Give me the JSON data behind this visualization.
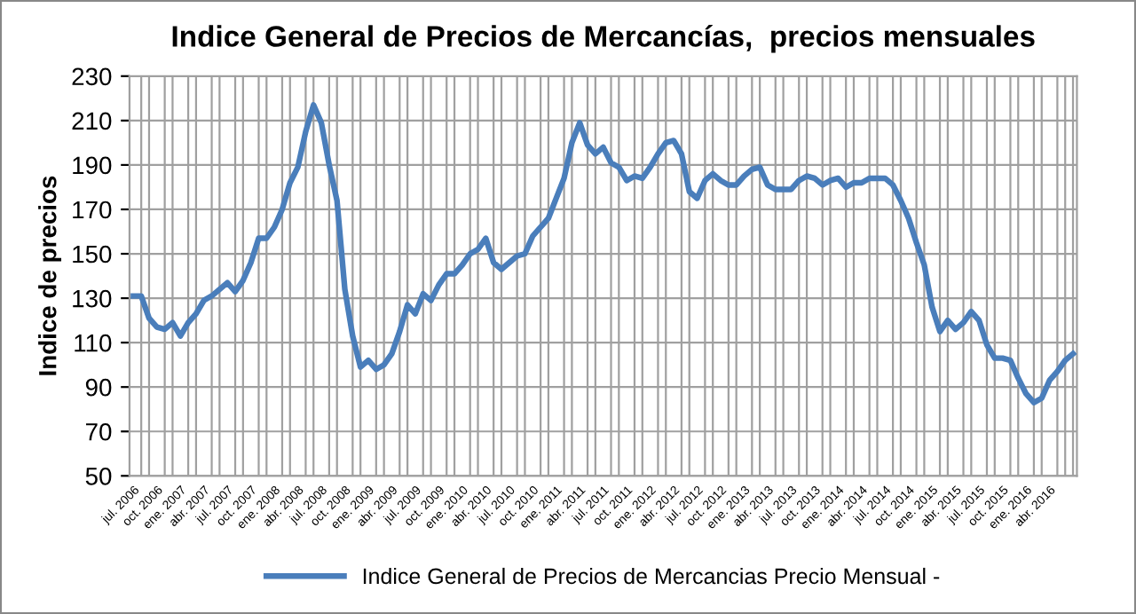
{
  "chart_data": {
    "type": "line",
    "title": "Indice General de Precios de Mercancías,  precios mensuales",
    "ylabel": "Indice de precios",
    "categories": [
      "jul. 2006",
      null,
      null,
      "oct. 2006",
      null,
      null,
      "ene. 2007",
      null,
      null,
      "abr. 2007",
      null,
      null,
      "jul. 2007",
      null,
      null,
      "oct. 2007",
      null,
      null,
      "ene. 2008",
      null,
      null,
      "abr. 2008",
      null,
      null,
      "jul. 2008",
      null,
      null,
      "oct. 2008",
      null,
      null,
      "ene. 2009",
      null,
      null,
      "abr. 2009",
      null,
      null,
      "jul. 2009",
      null,
      null,
      "oct. 2009",
      null,
      null,
      "ene. 2010",
      null,
      null,
      "abr. 2010",
      null,
      null,
      "jul. 2010",
      null,
      null,
      "oct. 2010",
      null,
      null,
      "ene. 2011",
      null,
      null,
      "abr. 2011",
      null,
      null,
      "jul. 2011",
      null,
      null,
      "oct. 2011",
      null,
      null,
      "ene. 2012",
      null,
      null,
      "abr. 2012",
      null,
      null,
      "jul. 2012",
      null,
      null,
      "oct. 2012",
      null,
      null,
      "ene. 2013",
      null,
      null,
      "abr. 2013",
      null,
      null,
      "jul. 2013",
      null,
      null,
      "oct. 2013",
      null,
      null,
      "ene. 2014",
      null,
      null,
      "abr. 2014",
      null,
      null,
      "jul. 2014",
      null,
      null,
      "oct. 2014",
      null,
      null,
      "ene. 2015",
      null,
      null,
      "abr. 2015",
      null,
      null,
      "jul. 2015",
      null,
      null,
      "oct. 2015",
      null,
      null,
      "ene. 2016",
      null,
      null,
      "abr. 2016",
      null,
      null,
      null
    ],
    "series": [
      {
        "name": "Indice General de Precios de Mercancias Precio Mensual -",
        "color": "#4a7ebb",
        "values": [
          131,
          131,
          121,
          117,
          116,
          119,
          113,
          119,
          123,
          129,
          131,
          134,
          137,
          133,
          138,
          146,
          157,
          157,
          162,
          170,
          182,
          189,
          205,
          217,
          209,
          190,
          174,
          134,
          113,
          99,
          102,
          98,
          100,
          105,
          115,
          127,
          123,
          132,
          129,
          136,
          141,
          141,
          145,
          150,
          152,
          157,
          146,
          143,
          146,
          149,
          150,
          158,
          162,
          166,
          175,
          184,
          200,
          209,
          199,
          195,
          198,
          191,
          189,
          183,
          185,
          184,
          189,
          195,
          200,
          201,
          195,
          178,
          175,
          183,
          186,
          183,
          181,
          181,
          185,
          188,
          189,
          181,
          179,
          179,
          179,
          183,
          185,
          184,
          181,
          183,
          184,
          180,
          182,
          182,
          184,
          184,
          184,
          181,
          174,
          166,
          155,
          145,
          126,
          115,
          120,
          116,
          119,
          124,
          120,
          109,
          103,
          103,
          102,
          94,
          87,
          83,
          85,
          93,
          97,
          102,
          105
        ]
      }
    ],
    "ylim": [
      50,
      230
    ],
    "yticks": [
      50,
      70,
      90,
      110,
      130,
      150,
      170,
      190,
      210,
      230
    ],
    "grid": true,
    "legend": "bottom",
    "marker": "none",
    "line_style": "solid"
  }
}
